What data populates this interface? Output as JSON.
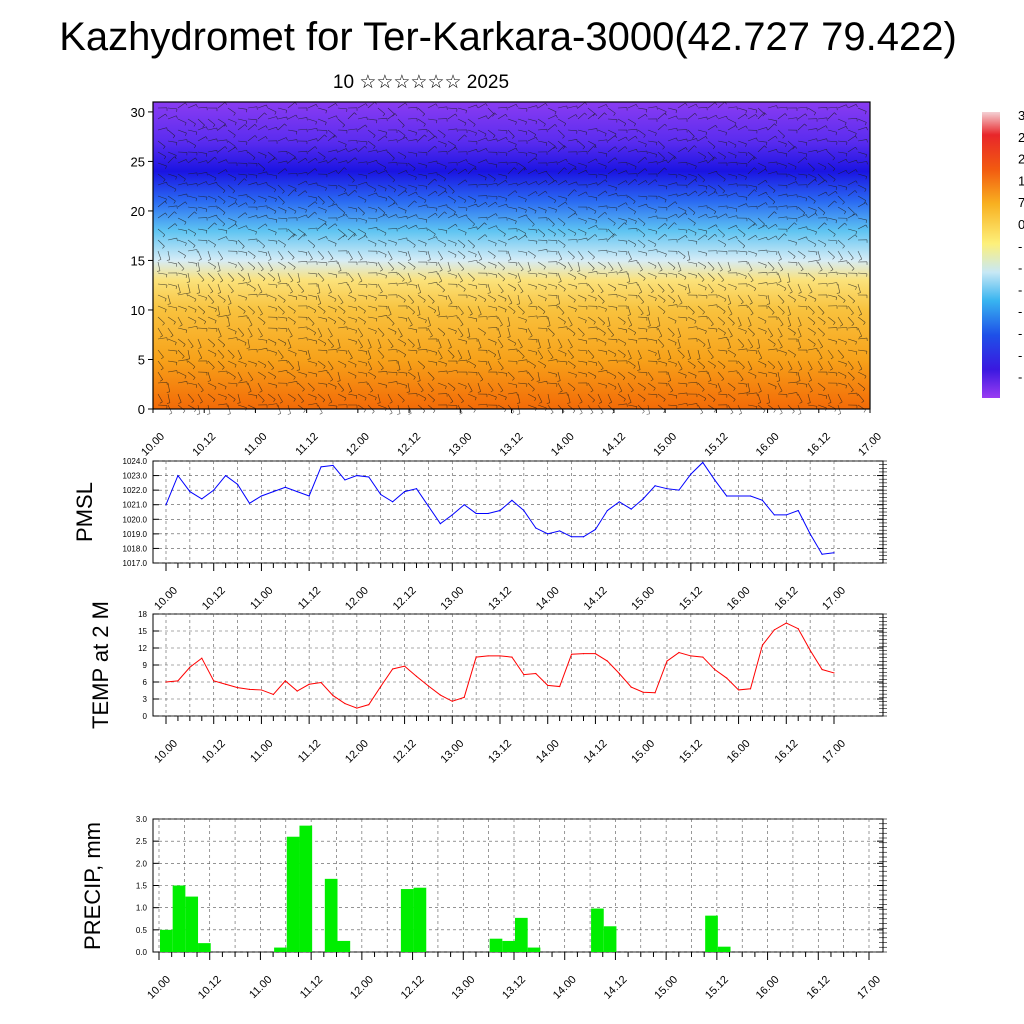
{
  "header": {
    "title": "Kazhydromet for Ter-Karkara-3000(42.727 79.422)",
    "subtitle": "10 ☆☆☆☆☆☆ 2025"
  },
  "colorbar": {
    "labels": [
      "3",
      "2",
      "2",
      "1",
      "7",
      "0",
      "-",
      "-",
      "-",
      "-",
      "-",
      "-",
      "-"
    ]
  },
  "chart_data": [
    {
      "type": "heatmap",
      "panel": "cross-section",
      "title": "",
      "xlabel": "",
      "ylabel": "",
      "x_ticks": [
        "10.00",
        "10.12",
        "11.00",
        "11.12",
        "12.00",
        "12.12",
        "13.00",
        "13.12",
        "14.00",
        "14.12",
        "15.00",
        "15.12",
        "16.00",
        "16.12",
        "17.00"
      ],
      "y_ticks": [
        0,
        5,
        10,
        15,
        20,
        25,
        30
      ],
      "ylim": [
        0,
        31
      ],
      "xlim_hours": [
        0,
        168
      ],
      "color_bands": [
        {
          "y": 0,
          "color": "#f36a07"
        },
        {
          "y": 5,
          "color": "#f7a21a"
        },
        {
          "y": 10,
          "color": "#f8c23e"
        },
        {
          "y": 13,
          "color": "#fbe27a"
        },
        {
          "y": 15,
          "color": "#d6ecf6"
        },
        {
          "y": 18,
          "color": "#5ec4f2"
        },
        {
          "y": 21,
          "color": "#2a6af2"
        },
        {
          "y": 24,
          "color": "#1a14e2"
        },
        {
          "y": 27,
          "color": "#5a2cef"
        },
        {
          "y": 31,
          "color": "#8a3cf2"
        }
      ],
      "overlay": "wind barbs"
    },
    {
      "type": "line",
      "ylabel": "PMSL",
      "ylim": [
        1017.0,
        1024.0
      ],
      "y_ticks": [
        "1017.0",
        "1018.0",
        "1019.0",
        "1020.0",
        "1021.0",
        "1022.0",
        "1023.0",
        "1024.0"
      ],
      "x_ticks": [
        "10.00",
        "10.12",
        "11.00",
        "11.12",
        "12.00",
        "12.12",
        "13.00",
        "13.12",
        "14.00",
        "14.12",
        "15.00",
        "15.12",
        "16.00",
        "16.12",
        "17.00"
      ],
      "color": "#0000ff",
      "x_hours": [
        0,
        3,
        6,
        9,
        12,
        15,
        18,
        21,
        24,
        27,
        30,
        33,
        36,
        39,
        42,
        45,
        48,
        51,
        54,
        57,
        60,
        63,
        66,
        69,
        72,
        75,
        78,
        81,
        84,
        87,
        90,
        93,
        96,
        99,
        102,
        105,
        108,
        111,
        114,
        117,
        120,
        123,
        126,
        129,
        132,
        135,
        138,
        141,
        144,
        147,
        150,
        153,
        156,
        159,
        162,
        165,
        168
      ],
      "values": [
        1021.0,
        1023.0,
        1021.9,
        1021.4,
        1022.0,
        1023.0,
        1022.4,
        1021.1,
        1021.6,
        1021.9,
        1022.2,
        1021.9,
        1021.6,
        1023.6,
        1023.7,
        1022.7,
        1023.0,
        1022.9,
        1021.7,
        1021.2,
        1021.9,
        1022.1,
        1020.9,
        1019.7,
        1020.3,
        1021.0,
        1020.4,
        1020.4,
        1020.6,
        1021.3,
        1020.6,
        1019.4,
        1019.0,
        1019.2,
        1018.8,
        1018.8,
        1019.3,
        1020.6,
        1021.2,
        1020.7,
        1021.4,
        1022.3,
        1022.1,
        1022.0,
        1023.1,
        1023.9,
        1022.7,
        1021.6,
        1021.6,
        1021.6,
        1021.3,
        1020.3,
        1020.3,
        1020.6,
        1019.0,
        1017.6,
        1017.7
      ]
    },
    {
      "type": "line",
      "ylabel": "TEMP at 2 M",
      "ylim": [
        0,
        18
      ],
      "y_ticks": [
        "0",
        "3",
        "6",
        "9",
        "12",
        "15",
        "18"
      ],
      "x_ticks": [
        "10.00",
        "10.12",
        "11.00",
        "11.12",
        "12.00",
        "12.12",
        "13.00",
        "13.12",
        "14.00",
        "14.12",
        "15.00",
        "15.12",
        "16.00",
        "16.12",
        "17.00"
      ],
      "color": "#ff0000",
      "x_hours": [
        0,
        3,
        6,
        9,
        12,
        15,
        18,
        21,
        24,
        27,
        30,
        33,
        36,
        39,
        42,
        45,
        48,
        51,
        54,
        57,
        60,
        63,
        66,
        69,
        72,
        75,
        78,
        81,
        84,
        87,
        90,
        93,
        96,
        99,
        102,
        105,
        108,
        111,
        114,
        117,
        120,
        123,
        126,
        129,
        132,
        135,
        138,
        141,
        144,
        147,
        150,
        153,
        156,
        159,
        162,
        165,
        168
      ],
      "values": [
        6.0,
        6.2,
        8.6,
        10.2,
        6.2,
        5.6,
        5.0,
        4.7,
        4.6,
        3.8,
        6.2,
        4.4,
        5.6,
        5.9,
        3.6,
        2.2,
        1.4,
        2.0,
        5.2,
        8.3,
        8.8,
        7.0,
        5.3,
        3.7,
        2.6,
        3.3,
        10.4,
        10.6,
        10.6,
        10.4,
        7.3,
        7.5,
        5.4,
        5.2,
        10.9,
        11.0,
        11.0,
        9.7,
        7.5,
        5.1,
        4.2,
        4.1,
        9.7,
        11.2,
        10.6,
        10.4,
        8.2,
        6.7,
        4.6,
        4.8,
        12.5,
        15.2,
        16.4,
        15.4,
        11.6,
        8.2,
        7.6
      ]
    },
    {
      "type": "bar",
      "ylabel": "PRECIP, mm",
      "ylim": [
        0,
        3.0
      ],
      "y_ticks": [
        "0.0",
        "0.5",
        "1.0",
        "1.5",
        "2.0",
        "2.5",
        "3.0"
      ],
      "x_ticks": [
        "10.00",
        "10.12",
        "11.00",
        "11.12",
        "12.00",
        "12.12",
        "13.00",
        "13.12",
        "14.00",
        "14.12",
        "15.00",
        "15.12",
        "16.00",
        "16.12",
        "17.00"
      ],
      "color": "#00ee00",
      "x_hours": [
        0,
        3,
        6,
        9,
        12,
        15,
        18,
        21,
        24,
        27,
        30,
        33,
        36,
        39,
        42,
        45,
        48,
        51,
        54,
        57,
        60,
        63,
        66,
        69,
        72,
        75,
        78,
        81,
        84,
        87,
        90,
        93,
        96,
        99,
        102,
        105,
        108,
        111,
        114,
        117,
        120,
        123,
        126,
        129,
        132,
        135,
        138,
        141,
        144,
        147,
        150,
        153,
        156,
        159,
        162,
        165,
        168
      ],
      "values": [
        0.5,
        1.5,
        1.25,
        0.2,
        0,
        0,
        0,
        0,
        0,
        0.1,
        2.6,
        2.85,
        0,
        1.65,
        0.25,
        0,
        0,
        0,
        0,
        1.42,
        1.45,
        0,
        0,
        0,
        0,
        0,
        0.3,
        0.25,
        0.77,
        0.1,
        0,
        0,
        0,
        0,
        0.98,
        0.58,
        0,
        0,
        0,
        0,
        0,
        0,
        0,
        0.82,
        0.12,
        0,
        0,
        0,
        0,
        0,
        0,
        0,
        0,
        0,
        0,
        0,
        0
      ]
    }
  ]
}
